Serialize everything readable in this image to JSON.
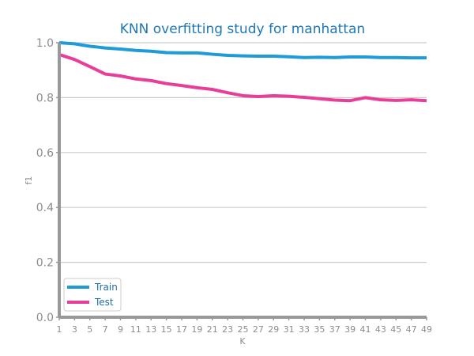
{
  "chart_data": {
    "type": "line",
    "title": "KNN overfitting study for manhattan",
    "xlabel": "K",
    "ylabel": "f1",
    "x": [
      1,
      3,
      5,
      7,
      9,
      11,
      13,
      15,
      17,
      19,
      21,
      23,
      25,
      27,
      29,
      31,
      33,
      35,
      37,
      39,
      41,
      43,
      45,
      47,
      49
    ],
    "xticks": [
      "1",
      "3",
      "5",
      "7",
      "9",
      "11",
      "13",
      "15",
      "17",
      "19",
      "21",
      "23",
      "25",
      "27",
      "29",
      "31",
      "33",
      "35",
      "37",
      "39",
      "41",
      "43",
      "45",
      "47",
      "49"
    ],
    "yticks": [
      "0.0",
      "0.2",
      "0.4",
      "0.6",
      "0.8",
      "1.0"
    ],
    "ylim": [
      0.0,
      1.0
    ],
    "xlim": [
      1,
      49
    ],
    "grid": "horizontal",
    "legend_position": "lower-left",
    "series": [
      {
        "name": "Train",
        "color": "#1f9bd7",
        "values": [
          1.0,
          0.996,
          0.987,
          0.981,
          0.977,
          0.972,
          0.969,
          0.964,
          0.963,
          0.963,
          0.958,
          0.954,
          0.952,
          0.951,
          0.951,
          0.949,
          0.946,
          0.947,
          0.946,
          0.948,
          0.948,
          0.946,
          0.946,
          0.945,
          0.945
        ]
      },
      {
        "name": "Test",
        "color": "#e83e9a",
        "values": [
          0.957,
          0.939,
          0.913,
          0.886,
          0.879,
          0.868,
          0.862,
          0.851,
          0.844,
          0.836,
          0.83,
          0.818,
          0.807,
          0.804,
          0.807,
          0.805,
          0.801,
          0.796,
          0.791,
          0.789,
          0.8,
          0.792,
          0.79,
          0.792,
          0.789
        ]
      }
    ]
  }
}
